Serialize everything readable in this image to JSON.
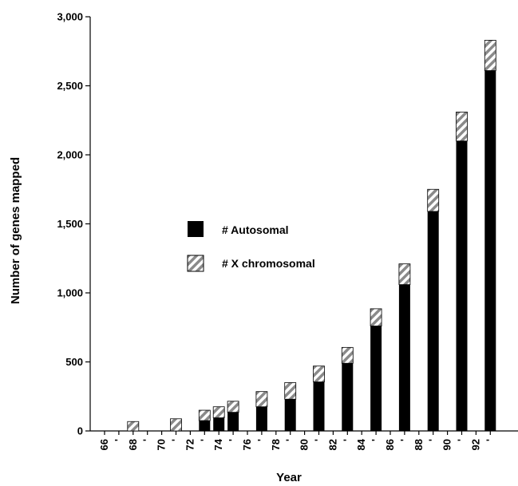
{
  "chart_data": {
    "type": "bar",
    "stacked": true,
    "title": "",
    "xlabel": "Year",
    "ylabel": "Number of genes mapped",
    "ylim": [
      0,
      3000
    ],
    "yticks": [
      "0",
      "500",
      "1,000",
      "1,500",
      "2,000",
      "2,500",
      "3,000"
    ],
    "x_tick_labels": [
      "66",
      "'",
      "68",
      "'",
      "70",
      "'",
      "72",
      "'",
      "74",
      "'",
      "76",
      "'",
      "78",
      "'",
      "80",
      "'",
      "82",
      "'",
      "84",
      "'",
      "86",
      "'",
      "88",
      "'",
      "90",
      "'",
      "92",
      "'"
    ],
    "bars": [
      {
        "year": 1968,
        "autosomal": 0,
        "x_chromosomal": 68
      },
      {
        "year": 1971,
        "autosomal": 0,
        "x_chromosomal": 88
      },
      {
        "year": 1973,
        "autosomal": 75,
        "x_chromosomal": 75
      },
      {
        "year": 1974,
        "autosomal": 95,
        "x_chromosomal": 80
      },
      {
        "year": 1975,
        "autosomal": 135,
        "x_chromosomal": 80
      },
      {
        "year": 1977,
        "autosomal": 175,
        "x_chromosomal": 110
      },
      {
        "year": 1979,
        "autosomal": 230,
        "x_chromosomal": 120
      },
      {
        "year": 1981,
        "autosomal": 355,
        "x_chromosomal": 115
      },
      {
        "year": 1983,
        "autosomal": 490,
        "x_chromosomal": 115
      },
      {
        "year": 1985,
        "autosomal": 760,
        "x_chromosomal": 125
      },
      {
        "year": 1987,
        "autosomal": 1060,
        "x_chromosomal": 150
      },
      {
        "year": 1989,
        "autosomal": 1590,
        "x_chromosomal": 160
      },
      {
        "year": 1991,
        "autosomal": 2100,
        "x_chromosomal": 210
      },
      {
        "year": 1993,
        "autosomal": 2610,
        "x_chromosomal": 220
      }
    ],
    "series": [
      {
        "name": "# Autosomal",
        "color": "#000000",
        "pattern": "solid"
      },
      {
        "name": "# X chromosomal",
        "color": "#888888",
        "pattern": "diagonal-hatch"
      }
    ],
    "legend_position": "center-left",
    "grid": false
  }
}
